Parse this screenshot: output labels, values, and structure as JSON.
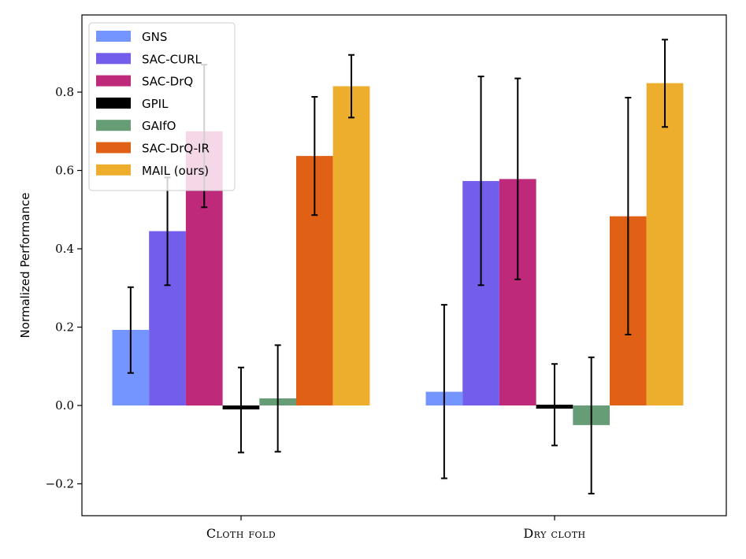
{
  "chart_data": {
    "type": "bar",
    "title": "",
    "xlabel": "",
    "ylabel": "Normalized Performance",
    "categories": [
      "Cloth fold",
      "Dry cloth"
    ],
    "yticks": [
      "−0.2",
      "0.0",
      "0.2",
      "0.4",
      "0.6",
      "0.8"
    ],
    "ylim": [
      -0.28,
      0.95
    ],
    "grid": false,
    "legend_position": "top-left",
    "series": [
      {
        "name": "GNS",
        "color": "#7495fd",
        "values": [
          0.193,
          0.035
        ],
        "err_low": [
          0.083,
          -0.186
        ],
        "err_high": [
          0.302,
          0.257
        ]
      },
      {
        "name": "SAC-CURL",
        "color": "#735deb",
        "values": [
          0.445,
          0.573
        ],
        "err_low": [
          0.307,
          0.307
        ],
        "err_high": [
          0.582,
          0.84
        ]
      },
      {
        "name": "SAC-DrQ",
        "color": "#bf297a",
        "values": [
          0.7,
          0.578
        ],
        "err_low": [
          0.506,
          0.322
        ],
        "err_high": [
          0.87,
          0.835
        ]
      },
      {
        "name": "GPIL",
        "color": "#000000",
        "values": [
          -0.008,
          0.003
        ],
        "err_low": [
          -0.12,
          -0.102
        ],
        "err_high": [
          0.097,
          0.106
        ]
      },
      {
        "name": "GAIfO",
        "color": "#669d76",
        "values": [
          0.018,
          -0.05
        ],
        "err_low": [
          -0.118,
          -0.225
        ],
        "err_high": [
          0.154,
          0.123
        ]
      },
      {
        "name": "SAC-DrQ-IR",
        "color": "#e06015",
        "values": [
          0.637,
          0.483
        ],
        "err_low": [
          0.486,
          0.181
        ],
        "err_high": [
          0.788,
          0.786
        ]
      },
      {
        "name": "MAIL (ours)",
        "color": "#edae2d",
        "values": [
          0.815,
          0.823
        ],
        "err_low": [
          0.735,
          0.711
        ],
        "err_high": [
          0.895,
          0.934
        ]
      }
    ]
  }
}
